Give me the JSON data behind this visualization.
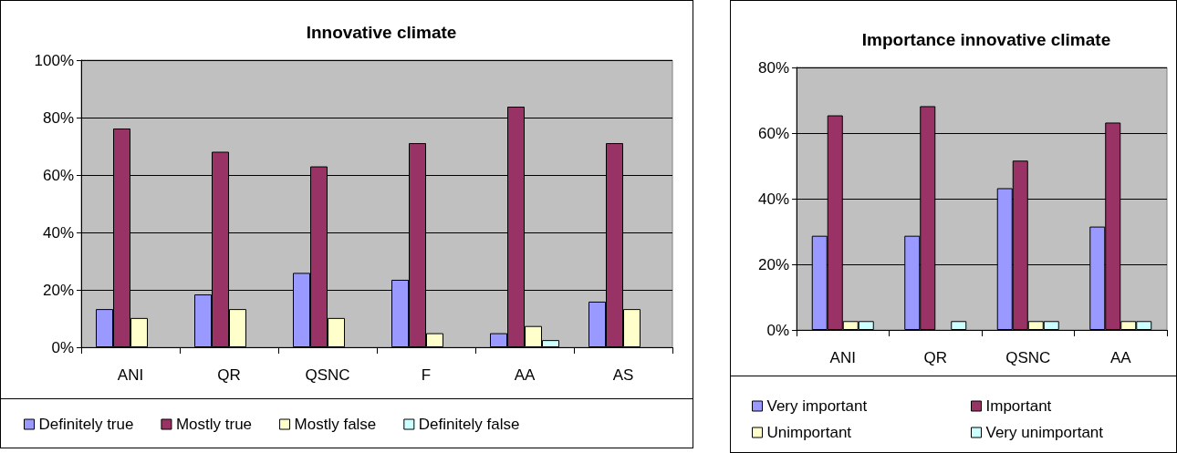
{
  "chart_data": [
    {
      "type": "bar",
      "title": "Innovative climate",
      "categories": [
        "ANI",
        "QR",
        "QSNC",
        "F",
        "AA",
        "AS"
      ],
      "series": [
        {
          "name": "Definitely true",
          "color": "#9999ff",
          "values": [
            13.3,
            18.4,
            25.9,
            23.5,
            4.9,
            15.9
          ]
        },
        {
          "name": "Mostly true",
          "color": "#993366",
          "values": [
            76.2,
            68.1,
            63,
            71.1,
            83.8,
            71.1
          ]
        },
        {
          "name": "Mostly false",
          "color": "#ffffcc",
          "values": [
            10.2,
            13.3,
            10.2,
            4.9,
            7.4,
            13.3
          ]
        },
        {
          "name": "Definitely false",
          "color": "#ccffff",
          "values": [
            null,
            null,
            null,
            null,
            2.5,
            null
          ]
        }
      ],
      "ylim": [
        0,
        100
      ],
      "yticks": [
        {
          "value": 0,
          "label": "0%"
        },
        {
          "value": 20,
          "label": "20%"
        },
        {
          "value": 40,
          "label": "40%"
        },
        {
          "value": 60,
          "label": "60%"
        },
        {
          "value": 80,
          "label": "80%"
        },
        {
          "value": 100,
          "label": "100%"
        }
      ],
      "grid": "y",
      "legend": "bottom"
    },
    {
      "type": "bar",
      "title": "Importance innovative climate",
      "categories": [
        "ANI",
        "QR",
        "QSNC",
        "AA"
      ],
      "series": [
        {
          "name": "Very important",
          "color": "#9999ff",
          "values": [
            28.7,
            28.7,
            43.2,
            31.5
          ]
        },
        {
          "name": "Important",
          "color": "#993366",
          "values": [
            65.4,
            68.2,
            51.6,
            63.2
          ]
        },
        {
          "name": "Unimportant",
          "color": "#ffffcc",
          "values": [
            2.7,
            null,
            2.7,
            2.7
          ]
        },
        {
          "name": "Very unimportant",
          "color": "#ccffff",
          "values": [
            2.7,
            2.7,
            2.7,
            2.7
          ]
        }
      ],
      "ylim": [
        0,
        80
      ],
      "yticks": [
        {
          "value": 0,
          "label": "0%"
        },
        {
          "value": 20,
          "label": "20%"
        },
        {
          "value": 40,
          "label": "40%"
        },
        {
          "value": 60,
          "label": "60%"
        },
        {
          "value": 80,
          "label": "80%"
        }
      ],
      "grid": "y",
      "legend": "bottom"
    }
  ]
}
